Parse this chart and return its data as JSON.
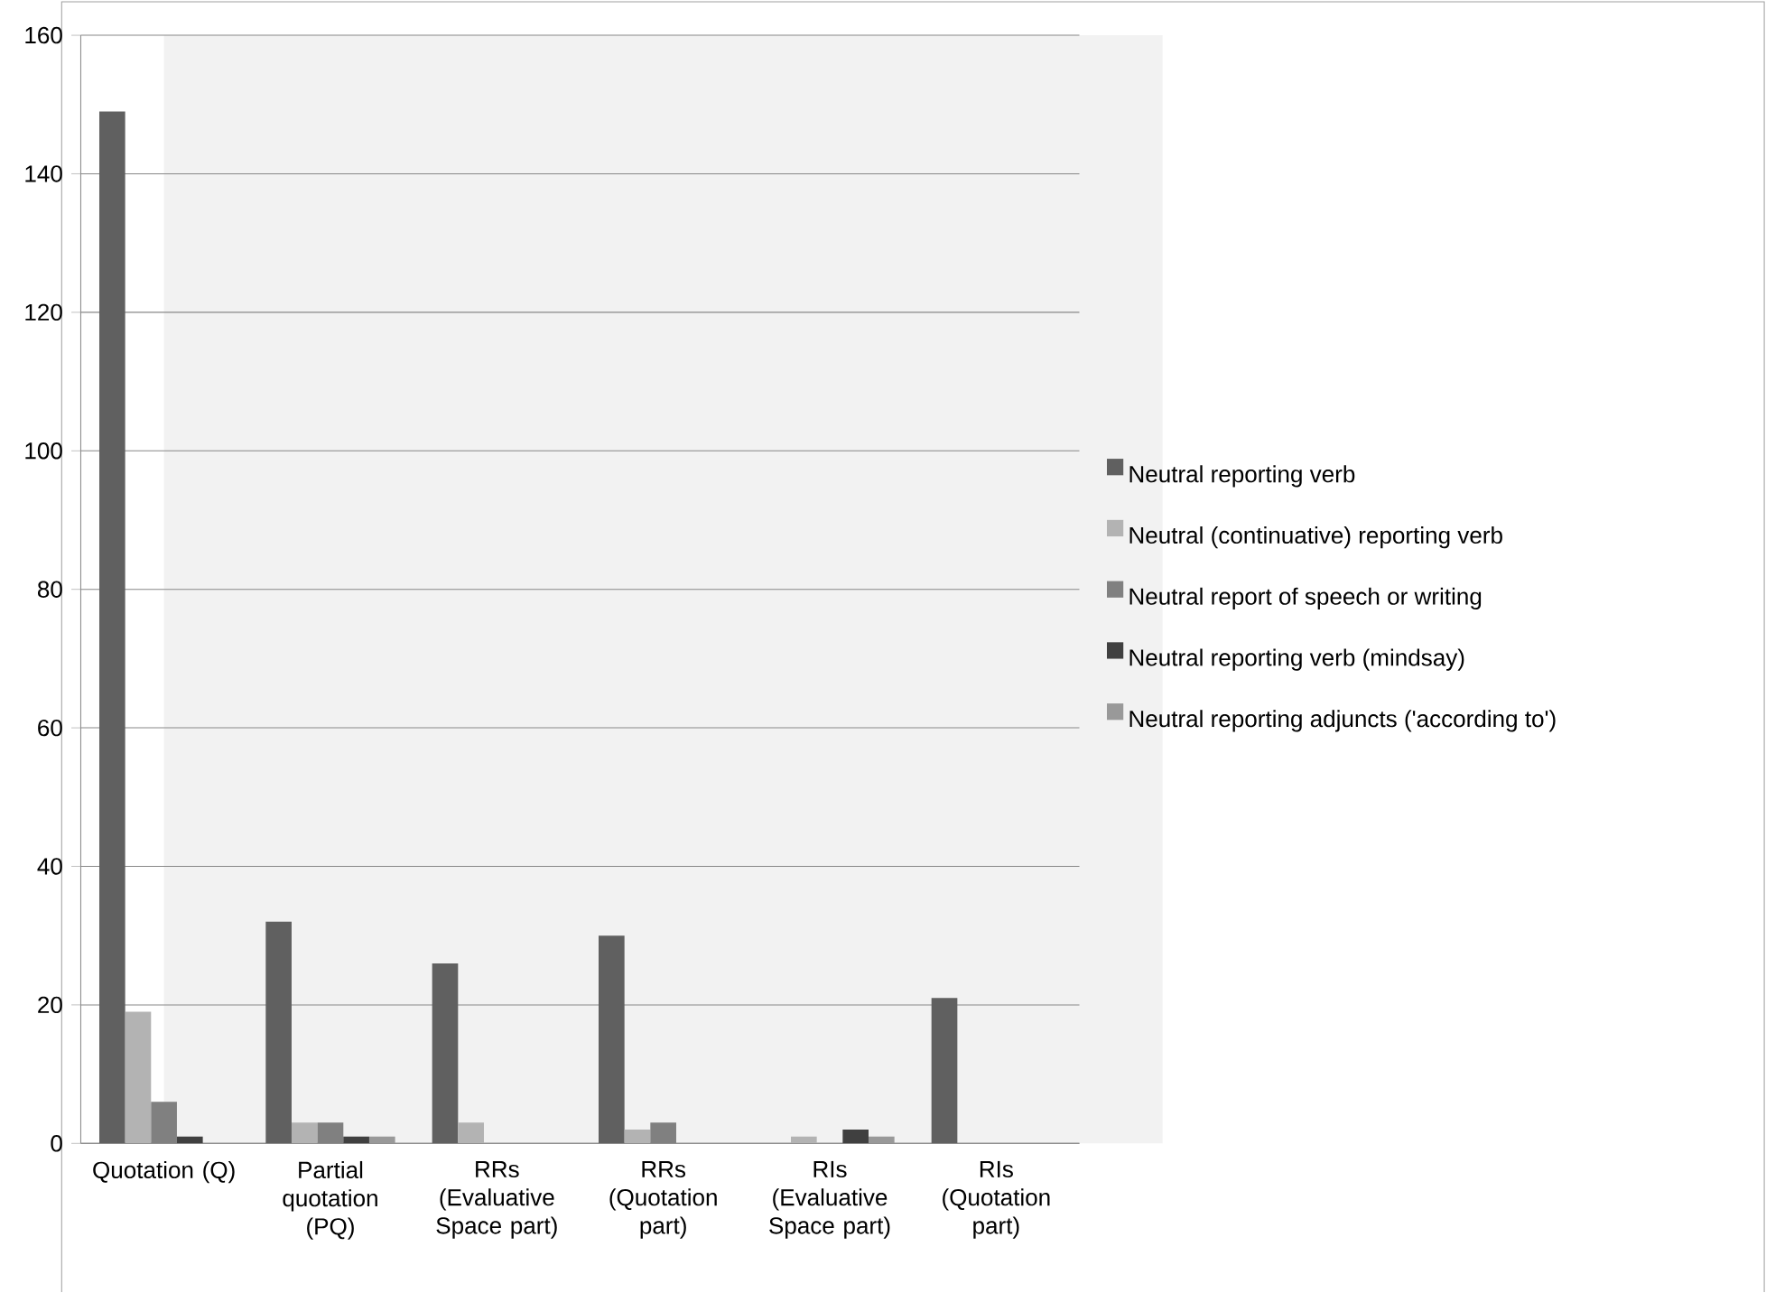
{
  "chart_data": {
    "type": "bar",
    "categories": [
      "Quotation (Q)",
      "Partial quotation (PQ)",
      "RRs (Evaluative Space part)",
      "RRs (Quotation part)",
      "RIs (Evaluative Space part)",
      "RIs (Quotation part)"
    ],
    "series": [
      {
        "name": "Neutral reporting verb",
        "color": "#606060",
        "values": [
          149,
          32,
          26,
          30,
          0,
          21
        ]
      },
      {
        "name": "Neutral (continuative) reporting verb",
        "color": "#b3b3b3",
        "values": [
          19,
          3,
          3,
          2,
          1,
          0
        ]
      },
      {
        "name": "Neutral report of speech or writing",
        "color": "#808080",
        "values": [
          6,
          3,
          0,
          3,
          0,
          0
        ]
      },
      {
        "name": "Neutral reporting verb (mindsay)",
        "color": "#404040",
        "values": [
          1,
          1,
          0,
          0,
          2,
          0
        ]
      },
      {
        "name": "Neutral reporting adjuncts ('according to')",
        "color": "#999999",
        "values": [
          0,
          1,
          0,
          0,
          1,
          0
        ]
      }
    ],
    "ylim": [
      0,
      160
    ],
    "yticks": [
      0,
      20,
      40,
      60,
      80,
      100,
      120,
      140,
      160
    ],
    "grid": "y",
    "legend": "right"
  }
}
